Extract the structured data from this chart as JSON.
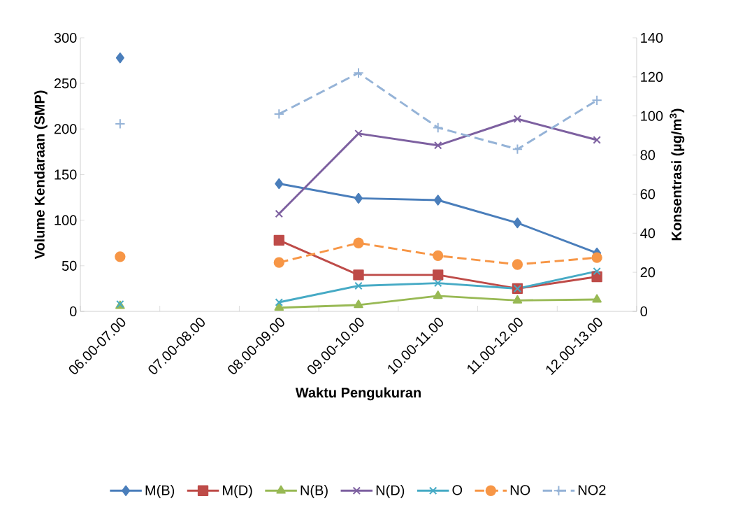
{
  "chart_data": {
    "type": "line",
    "categories": [
      "06.00-07.00",
      "07.00-08.00",
      "08.00-09.00",
      "09.00-10.00",
      "10.00-11.00",
      "11.00-12.00",
      "12.00-13.00"
    ],
    "xlabel": "Waktu Pengukuran",
    "ylabel": "Volume Kendaraan (SMP)",
    "y2label": "Konsentrasi (µg/m$^{3}$)",
    "ylim": [
      0,
      300
    ],
    "yticks": [
      0,
      50,
      100,
      150,
      200,
      250,
      300
    ],
    "y2lim": [
      0,
      140
    ],
    "y2ticks": [
      0,
      20,
      40,
      60,
      80,
      100,
      120,
      140
    ],
    "legend": "bottom",
    "series": [
      {
        "name": "M(B)",
        "color": "#4a7ebb",
        "marker": "diamond",
        "line_style": "solid",
        "values": [
          278,
          null,
          140,
          124,
          122,
          97,
          64
        ]
      },
      {
        "name": "M(D)",
        "color": "#be4b48",
        "marker": "square",
        "line_style": "solid",
        "values": [
          null,
          null,
          78,
          40,
          40,
          25,
          38
        ]
      },
      {
        "name": "N(B)",
        "color": "#98b954",
        "marker": "triangle",
        "line_style": "solid",
        "values": [
          6,
          null,
          4,
          7,
          17,
          12,
          13
        ]
      },
      {
        "name": "N(D)",
        "color": "#7d60a0",
        "marker": "cross",
        "line_style": "solid",
        "values": [
          null,
          null,
          107,
          195,
          182,
          211,
          188
        ]
      },
      {
        "name": "O",
        "color": "#46aac5",
        "marker": "cross",
        "line_style": "solid",
        "values": [
          8,
          null,
          10,
          28,
          31,
          25,
          44
        ]
      },
      {
        "name": "NO",
        "color": "#f79646",
        "marker": "circle",
        "line_style": "dashed",
        "axis": "y2",
        "values": [
          28,
          null,
          25,
          35,
          28.5,
          24,
          27.5
        ]
      },
      {
        "name": "NO2",
        "color": "#95b3d7",
        "marker": "plus",
        "line_style": "dashed",
        "axis": "y2",
        "values": [
          96,
          null,
          101,
          122,
          94,
          83,
          108
        ]
      }
    ]
  }
}
